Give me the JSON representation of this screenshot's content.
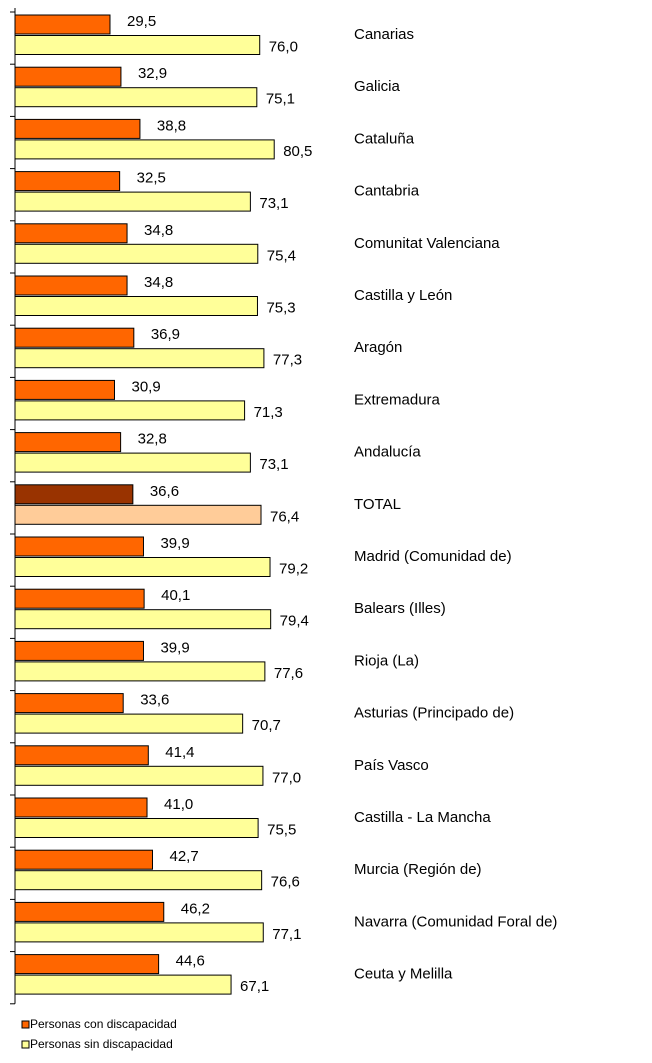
{
  "chart_data": {
    "type": "hbar",
    "categories": [
      "Canarias",
      "Galicia",
      "Cataluña",
      "Cantabria",
      "Comunitat Valenciana",
      "Castilla y León",
      "Aragón",
      "Extremadura",
      "Andalucía",
      "TOTAL",
      "Madrid (Comunidad de)",
      "Balears (Illes)",
      "Rioja (La)",
      "Asturias (Principado de)",
      "País Vasco",
      "Castilla - La Mancha",
      "Murcia (Región de)",
      "Navarra (Comunidad Foral de)",
      "Ceuta y Melilla"
    ],
    "xlim": [
      0,
      100
    ],
    "legend": "bottom-left",
    "series": [
      {
        "name": "Personas con discapacidad",
        "color": "#ff6600",
        "colors": [
          "#ff6600",
          "#ff6600",
          "#ff6600",
          "#ff6600",
          "#ff6600",
          "#ff6600",
          "#ff6600",
          "#ff6600",
          "#ff6600",
          "#993300",
          "#ff6600",
          "#ff6600",
          "#ff6600",
          "#ff6600",
          "#ff6600",
          "#ff6600",
          "#ff6600",
          "#ff6600",
          "#ff6600"
        ],
        "values": [
          29.5,
          32.9,
          38.8,
          32.5,
          34.8,
          34.8,
          36.9,
          30.9,
          32.8,
          36.6,
          39.9,
          40.1,
          39.9,
          33.6,
          41.4,
          41.0,
          42.7,
          46.2,
          44.6
        ],
        "value_labels": [
          "29,5",
          "32,9",
          "38,8",
          "32,5",
          "34,8",
          "34,8",
          "36,9",
          "30,9",
          "32,8",
          "36,6",
          "39,9",
          "40,1",
          "39,9",
          "33,6",
          "41,4",
          "41,0",
          "42,7",
          "46,2",
          "44,6"
        ]
      },
      {
        "name": "Personas sin discapacidad",
        "color": "#ffff99",
        "colors": [
          "#ffff99",
          "#ffff99",
          "#ffff99",
          "#ffff99",
          "#ffff99",
          "#ffff99",
          "#ffff99",
          "#ffff99",
          "#ffff99",
          "#ffcc99",
          "#ffff99",
          "#ffff99",
          "#ffff99",
          "#ffff99",
          "#ffff99",
          "#ffff99",
          "#ffff99",
          "#ffff99",
          "#ffff99"
        ],
        "values": [
          76.0,
          75.1,
          80.5,
          73.1,
          75.4,
          75.3,
          77.3,
          71.3,
          73.1,
          76.4,
          79.2,
          79.4,
          77.6,
          70.7,
          77.0,
          75.5,
          76.6,
          77.1,
          67.1
        ],
        "value_labels": [
          "76,0",
          "75,1",
          "80,5",
          "73,1",
          "75,4",
          "75,3",
          "77,3",
          "71,3",
          "73,1",
          "76,4",
          "79,2",
          "79,4",
          "77,6",
          "70,7",
          "77,0",
          "75,5",
          "76,6",
          "77,1",
          "67,1"
        ]
      }
    ]
  }
}
